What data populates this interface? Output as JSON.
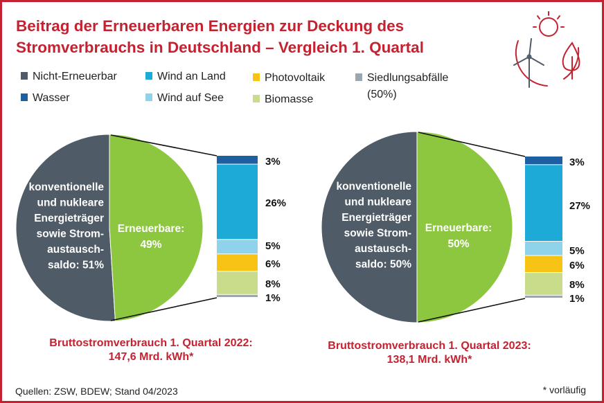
{
  "title_line1": "Beitrag der Erneuerbaren Energien zur Deckung des",
  "title_line2": "Stromverbrauchs in Deutschland – Vergleich 1. Quartal",
  "colors": {
    "brand": "#c42230",
    "nicht_erneuerbar": "#4f5b66",
    "erneuerbar": "#8dc63f",
    "wasser": "#1d5fa0",
    "wind_land": "#1eaad6",
    "wind_see": "#8fd3ea",
    "photovoltaik": "#f7c315",
    "biomasse": "#c8dc8c",
    "siedlungsabfaelle": "#9aa6b0"
  },
  "legend": [
    {
      "label": "Nicht-Erneuerbar",
      "color": "#4f5b66"
    },
    {
      "label": "Wasser",
      "color": "#1d5fa0"
    },
    {
      "label": "Wind an Land",
      "color": "#1eaad6"
    },
    {
      "label": "Wind auf See",
      "color": "#8fd3ea"
    },
    {
      "label": "Photovoltaik",
      "color": "#f7c315"
    },
    {
      "label": "Biomasse",
      "color": "#c8dc8c"
    },
    {
      "label": "Siedlungsabfälle",
      "label2": "(50%)",
      "color": "#9aa6b0"
    }
  ],
  "chart_data": [
    {
      "type": "pie",
      "period": "1. Quartal 2022",
      "slices": [
        {
          "name": "konventionelle und nukleare Energieträger sowie Stromaustauschsaldo",
          "value": 51,
          "label_lines": [
            "konventionelle",
            "und nukleare",
            "Energieträger",
            "sowie Strom-",
            "austausch-",
            "saldo: 51%"
          ]
        },
        {
          "name": "Erneuerbare",
          "value": 49,
          "label_lines": [
            "Erneuerbare:",
            "49%"
          ]
        }
      ],
      "breakdown": [
        {
          "name": "Wasser",
          "value": 3,
          "label": "3%"
        },
        {
          "name": "Wind an Land",
          "value": 26,
          "label": "26%"
        },
        {
          "name": "Wind auf See",
          "value": 5,
          "label": "5%"
        },
        {
          "name": "Photovoltaik",
          "value": 6,
          "label": "6%"
        },
        {
          "name": "Biomasse",
          "value": 8,
          "label": "8%"
        },
        {
          "name": "Siedlungsabfälle",
          "value": 1,
          "label": "1%"
        }
      ],
      "caption_line1": "Bruttostromverbrauch 1. Quartal 2022:",
      "caption_line2": "147,6 Mrd. kWh*"
    },
    {
      "type": "pie",
      "period": "1. Quartal 2023",
      "slices": [
        {
          "name": "konventionelle und nukleare Energieträger sowie Stromaustauschsaldo",
          "value": 50,
          "label_lines": [
            "konventionelle",
            "und nukleare",
            "Energieträger",
            "sowie Strom-",
            "austausch-",
            "saldo: 50%"
          ]
        },
        {
          "name": "Erneuerbare",
          "value": 50,
          "label_lines": [
            "Erneuerbare:",
            "50%"
          ]
        }
      ],
      "breakdown": [
        {
          "name": "Wasser",
          "value": 3,
          "label": "3%"
        },
        {
          "name": "Wind an Land",
          "value": 27,
          "label": "27%"
        },
        {
          "name": "Wind auf See",
          "value": 5,
          "label": "5%"
        },
        {
          "name": "Photovoltaik",
          "value": 6,
          "label": "6%"
        },
        {
          "name": "Biomasse",
          "value": 8,
          "label": "8%"
        },
        {
          "name": "Siedlungsabfälle",
          "value": 1,
          "label": "1%"
        }
      ],
      "caption_line1": "Bruttostromverbrauch 1. Quartal 2023:",
      "caption_line2": "138,1 Mrd. kWh*"
    }
  ],
  "footer_sources": "Quellen: ZSW, BDEW; Stand 04/2023",
  "footnote": "* vorläufig"
}
